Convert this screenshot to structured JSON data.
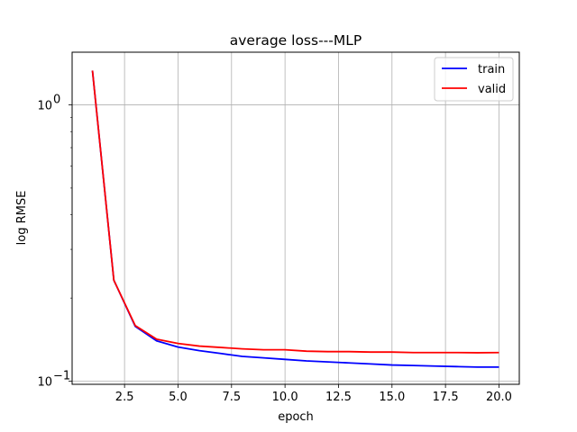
{
  "chart_data": {
    "type": "line",
    "title": "average loss---MLP",
    "xlabel": "epoch",
    "ylabel": "log RMSE",
    "yscale": "log",
    "xlim": [
      0.05,
      20.95
    ],
    "ylim": [
      0.0975,
      1.55
    ],
    "grid": true,
    "legend_position": "top-right",
    "x": [
      1,
      2,
      3,
      4,
      5,
      6,
      7,
      8,
      9,
      10,
      11,
      12,
      13,
      14,
      15,
      16,
      17,
      18,
      19,
      20
    ],
    "xticks": [
      {
        "value": 2.5,
        "label": "2.5"
      },
      {
        "value": 5.0,
        "label": "5.0"
      },
      {
        "value": 7.5,
        "label": "7.5"
      },
      {
        "value": 10.0,
        "label": "10.0"
      },
      {
        "value": 12.5,
        "label": "12.5"
      },
      {
        "value": 15.0,
        "label": "15.0"
      },
      {
        "value": 17.5,
        "label": "17.5"
      },
      {
        "value": 20.0,
        "label": "20.0"
      }
    ],
    "yticks": [
      {
        "value": 1.0,
        "label": "10",
        "exp": "0"
      },
      {
        "value": 0.1,
        "label": "10",
        "exp": "−1"
      }
    ],
    "series": [
      {
        "name": "train",
        "color": "#0000ff",
        "values": [
          1.33,
          0.232,
          0.158,
          0.14,
          0.133,
          0.129,
          0.126,
          0.123,
          0.1215,
          0.12,
          0.1185,
          0.1175,
          0.1165,
          0.1155,
          0.1145,
          0.114,
          0.1135,
          0.113,
          0.1125,
          0.1125
        ]
      },
      {
        "name": "valid",
        "color": "#ff0000",
        "values": [
          1.33,
          0.232,
          0.159,
          0.142,
          0.137,
          0.134,
          0.1325,
          0.131,
          0.13,
          0.13,
          0.1285,
          0.128,
          0.128,
          0.1275,
          0.1275,
          0.127,
          0.127,
          0.127,
          0.1268,
          0.127
        ]
      }
    ]
  }
}
